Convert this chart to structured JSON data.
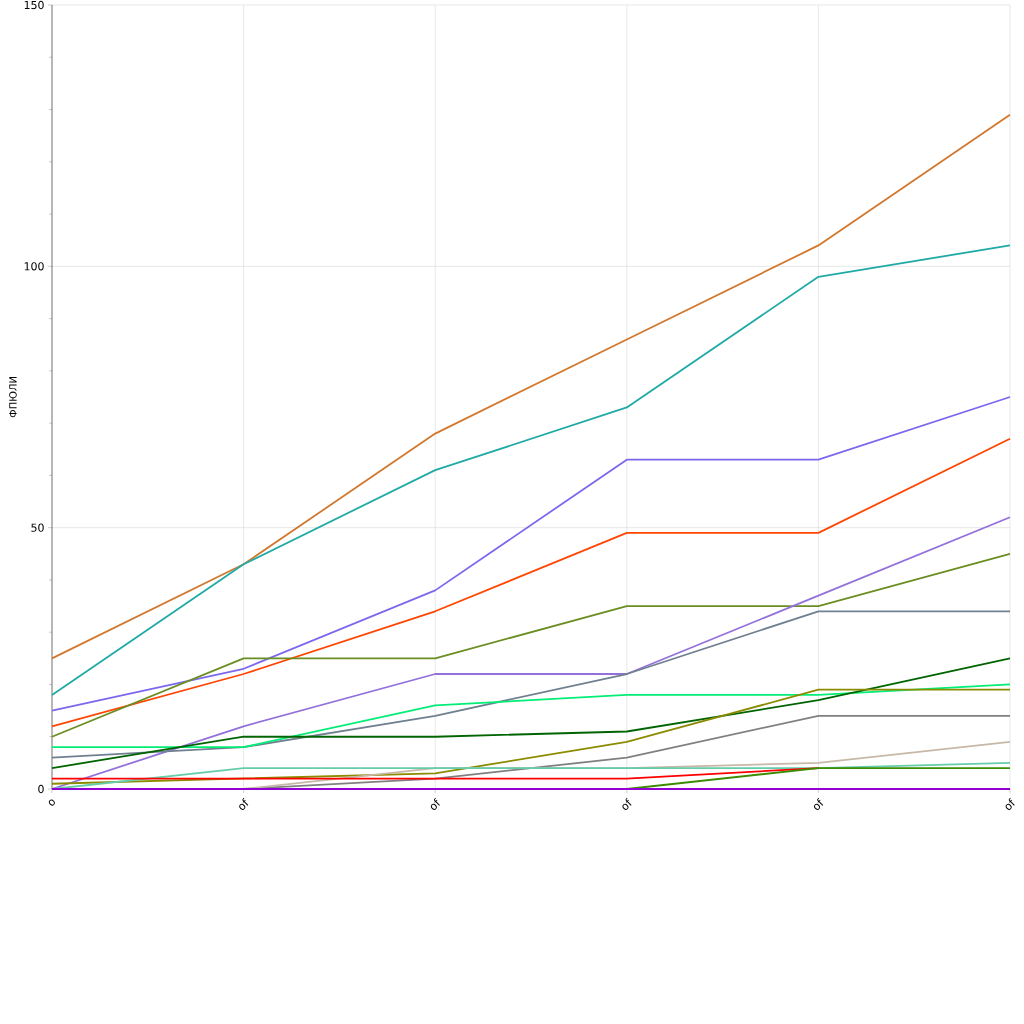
{
  "chart_data": {
    "type": "line",
    "ylabel": "ФПЮЛИ",
    "categories": [
      "o",
      "of",
      "of",
      "of",
      "of",
      "of"
    ],
    "ylim": [
      0,
      150
    ],
    "yticks": [
      0,
      {
        "value": 10,
        "label": null
      },
      {
        "value": 20,
        "label": null
      },
      {
        "value": 30,
        "label": null
      },
      {
        "value": 40,
        "label": null
      },
      50,
      {
        "value": 60,
        "label": null
      },
      {
        "value": 70,
        "label": null
      },
      {
        "value": 80,
        "label": null
      },
      {
        "value": 90,
        "label": null
      },
      100,
      {
        "value": 110,
        "label": null
      },
      {
        "value": 120,
        "label": null
      },
      {
        "value": 130,
        "label": null
      },
      {
        "value": 140,
        "label": null
      },
      150
    ],
    "grid": true,
    "marker": "none",
    "line_style": "solid",
    "series": [
      {
        "color": "#d2782e",
        "values": [
          25,
          43,
          68,
          86,
          104,
          129
        ]
      },
      {
        "color": "#20aaa6",
        "values": [
          18,
          43,
          61,
          73,
          98,
          104
        ]
      },
      {
        "color": "#7b68ee",
        "values": [
          15,
          23,
          38,
          63,
          63,
          75
        ]
      },
      {
        "color": "#ff4500",
        "values": [
          12,
          22,
          34,
          49,
          49,
          67
        ]
      },
      {
        "color": "#6b8e23",
        "values": [
          10,
          25,
          25,
          35,
          35,
          45
        ]
      },
      {
        "color": "#9370db",
        "values": [
          0,
          12,
          22,
          22,
          37,
          52
        ]
      },
      {
        "color": "#708090",
        "values": [
          6,
          8,
          14,
          22,
          34,
          34
        ]
      },
      {
        "color": "#00ee76",
        "values": [
          8,
          8,
          16,
          18,
          18,
          20
        ]
      },
      {
        "color": "#006400",
        "values": [
          4,
          10,
          10,
          11,
          17,
          25
        ]
      },
      {
        "color": "#8b8b00",
        "values": [
          1,
          2,
          3,
          9,
          19,
          19
        ]
      },
      {
        "color": "#808080",
        "values": [
          null,
          0,
          2,
          6,
          14,
          14
        ]
      },
      {
        "color": "#c8b8a8",
        "values": [
          null,
          0,
          4,
          4,
          5,
          9
        ]
      },
      {
        "color": "#66cdaa",
        "values": [
          0,
          4,
          4,
          4,
          4,
          5
        ]
      },
      {
        "color": "#ff0000",
        "values": [
          2,
          2,
          2,
          2,
          4,
          null
        ]
      },
      {
        "color": "#3c8c00",
        "values": [
          null,
          null,
          null,
          0,
          4,
          4
        ]
      },
      {
        "color": "#9400d3",
        "values": [
          0,
          0,
          0,
          0,
          0,
          0
        ]
      }
    ]
  }
}
